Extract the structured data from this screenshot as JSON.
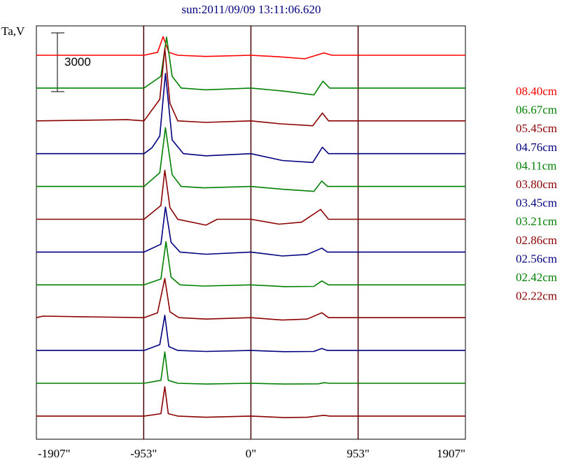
{
  "chart_data": {
    "type": "line",
    "title": "sun:2011/09/09 13:11:06.620",
    "ylabel": "Ta,V",
    "scale_bar_label": "3000",
    "x_ticks": [
      {
        "value": -1907,
        "label": "-1907\""
      },
      {
        "value": -953,
        "label": "-953\""
      },
      {
        "value": 0,
        "label": "0\""
      },
      {
        "value": 953,
        "label": "953\""
      },
      {
        "value": 1907,
        "label": "1907\""
      }
    ],
    "xlim": [
      -1907,
      1907
    ],
    "series_colors": {
      "red": "#ff0000",
      "green": "#008000",
      "maroon": "#8b0000",
      "blue": "#000080"
    },
    "series": [
      {
        "name": "08.40cm",
        "color": "#ff0000",
        "points": [
          [
            -1907,
            0
          ],
          [
            -1000,
            0
          ],
          [
            -950,
            0
          ],
          [
            -830,
            150
          ],
          [
            -780,
            950
          ],
          [
            -730,
            150
          ],
          [
            -650,
            0
          ],
          [
            -400,
            -60
          ],
          [
            0,
            0
          ],
          [
            250,
            -80
          ],
          [
            480,
            -180
          ],
          [
            650,
            120
          ],
          [
            720,
            0
          ],
          [
            1907,
            0
          ]
        ]
      },
      {
        "name": "06.67cm",
        "color": "#008000",
        "points": [
          [
            -1907,
            0
          ],
          [
            -950,
            0
          ],
          [
            -800,
            600
          ],
          [
            -750,
            2600
          ],
          [
            -700,
            600
          ],
          [
            -620,
            0
          ],
          [
            -400,
            -90
          ],
          [
            0,
            0
          ],
          [
            280,
            -150
          ],
          [
            560,
            -350
          ],
          [
            640,
            350
          ],
          [
            700,
            0
          ],
          [
            1907,
            0
          ]
        ]
      },
      {
        "name": "05.45cm",
        "color": "#8b0000",
        "points": [
          [
            -1907,
            0
          ],
          [
            -1100,
            60
          ],
          [
            -950,
            0
          ],
          [
            -810,
            1100
          ],
          [
            -765,
            3700
          ],
          [
            -720,
            900
          ],
          [
            -650,
            0
          ],
          [
            -400,
            -80
          ],
          [
            0,
            0
          ],
          [
            260,
            -150
          ],
          [
            550,
            -250
          ],
          [
            635,
            400
          ],
          [
            690,
            0
          ],
          [
            1907,
            0
          ]
        ]
      },
      {
        "name": "04.76cm",
        "color": "#000080",
        "points": [
          [
            -1907,
            0
          ],
          [
            -950,
            0
          ],
          [
            -880,
            300
          ],
          [
            -810,
            900
          ],
          [
            -760,
            4100
          ],
          [
            -700,
            700
          ],
          [
            -600,
            0
          ],
          [
            -400,
            -110
          ],
          [
            0,
            0
          ],
          [
            280,
            -350
          ],
          [
            550,
            -450
          ],
          [
            635,
            330
          ],
          [
            690,
            0
          ],
          [
            1907,
            0
          ]
        ]
      },
      {
        "name": "04.11cm",
        "color": "#008000",
        "points": [
          [
            -1907,
            0
          ],
          [
            -950,
            0
          ],
          [
            -810,
            700
          ],
          [
            -760,
            3000
          ],
          [
            -700,
            600
          ],
          [
            -620,
            0
          ],
          [
            -420,
            -70
          ],
          [
            0,
            0
          ],
          [
            300,
            -150
          ],
          [
            560,
            -250
          ],
          [
            630,
            280
          ],
          [
            680,
            0
          ],
          [
            1907,
            0
          ]
        ]
      },
      {
        "name": "03.80cm",
        "color": "#8b0000",
        "points": [
          [
            -1907,
            0
          ],
          [
            -1200,
            0
          ],
          [
            -1180,
            0
          ],
          [
            -950,
            0
          ],
          [
            -800,
            700
          ],
          [
            -765,
            2500
          ],
          [
            -720,
            600
          ],
          [
            -650,
            0
          ],
          [
            -400,
            -300
          ],
          [
            -300,
            0
          ],
          [
            0,
            0
          ],
          [
            250,
            -250
          ],
          [
            450,
            -150
          ],
          [
            620,
            500
          ],
          [
            690,
            0
          ],
          [
            1907,
            0
          ]
        ]
      },
      {
        "name": "03.45cm",
        "color": "#000080",
        "points": [
          [
            -1907,
            0
          ],
          [
            -950,
            0
          ],
          [
            -800,
            400
          ],
          [
            -760,
            2300
          ],
          [
            -710,
            500
          ],
          [
            -630,
            0
          ],
          [
            -400,
            -110
          ],
          [
            0,
            0
          ],
          [
            280,
            -200
          ],
          [
            500,
            -120
          ],
          [
            630,
            200
          ],
          [
            680,
            0
          ],
          [
            1907,
            0
          ]
        ]
      },
      {
        "name": "03.21cm",
        "color": "#008000",
        "points": [
          [
            -1907,
            0
          ],
          [
            -950,
            0
          ],
          [
            -800,
            300
          ],
          [
            -755,
            2200
          ],
          [
            -710,
            400
          ],
          [
            -630,
            0
          ],
          [
            -420,
            -60
          ],
          [
            0,
            0
          ],
          [
            300,
            -90
          ],
          [
            560,
            -80
          ],
          [
            630,
            200
          ],
          [
            690,
            0
          ],
          [
            1907,
            0
          ]
        ]
      },
      {
        "name": "02.86cm",
        "color": "#8b0000",
        "points": [
          [
            -1907,
            0
          ],
          [
            -1850,
            80
          ],
          [
            -950,
            0
          ],
          [
            -830,
            250
          ],
          [
            -765,
            2000
          ],
          [
            -720,
            300
          ],
          [
            -640,
            0
          ],
          [
            -400,
            -70
          ],
          [
            0,
            0
          ],
          [
            280,
            -120
          ],
          [
            500,
            -70
          ],
          [
            630,
            250
          ],
          [
            690,
            0
          ],
          [
            1907,
            0
          ]
        ]
      },
      {
        "name": "02.56cm",
        "color": "#000080",
        "points": [
          [
            -1907,
            0
          ],
          [
            -950,
            0
          ],
          [
            -810,
            300
          ],
          [
            -765,
            1800
          ],
          [
            -730,
            200
          ],
          [
            -650,
            0
          ],
          [
            -400,
            -50
          ],
          [
            0,
            0
          ],
          [
            300,
            -60
          ],
          [
            560,
            -50
          ],
          [
            630,
            100
          ],
          [
            680,
            0
          ],
          [
            1907,
            0
          ]
        ]
      },
      {
        "name": "02.42cm",
        "color": "#008000",
        "points": [
          [
            -1907,
            0
          ],
          [
            -950,
            0
          ],
          [
            -800,
            150
          ],
          [
            -765,
            1600
          ],
          [
            -735,
            150
          ],
          [
            -650,
            0
          ],
          [
            -400,
            -40
          ],
          [
            0,
            0
          ],
          [
            300,
            -40
          ],
          [
            600,
            -30
          ],
          [
            650,
            30
          ],
          [
            700,
            0
          ],
          [
            1907,
            0
          ]
        ]
      },
      {
        "name": "02.22cm",
        "color": "#8b0000",
        "points": [
          [
            -1907,
            0
          ],
          [
            -950,
            0
          ],
          [
            -800,
            120
          ],
          [
            -765,
            1500
          ],
          [
            -735,
            120
          ],
          [
            -650,
            0
          ],
          [
            -400,
            -60
          ],
          [
            0,
            0
          ],
          [
            300,
            -80
          ],
          [
            500,
            -60
          ],
          [
            650,
            40
          ],
          [
            700,
            0
          ],
          [
            1907,
            0
          ]
        ]
      }
    ]
  }
}
